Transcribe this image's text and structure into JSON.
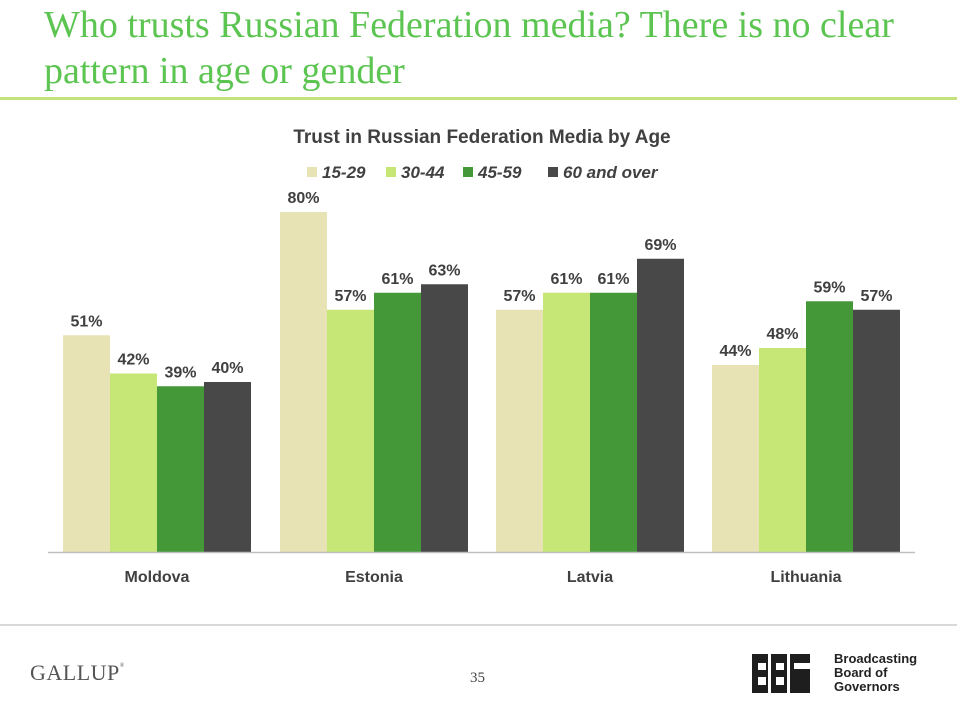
{
  "slide": {
    "title": "Who trusts Russian Federation media? There is no clear pattern in age or gender",
    "page_number": "35"
  },
  "footer": {
    "gallup_logo": "GALLUP",
    "bbg_logo_mark": "BBG",
    "bbg_lines": [
      "Broadcasting",
      "Board of",
      "Governors"
    ]
  },
  "chart_data": {
    "type": "bar",
    "title": "Trust in Russian Federation Media by Age",
    "xlabel": "",
    "ylabel": "",
    "ylim": [
      0,
      100
    ],
    "grid": false,
    "legend_position": "top",
    "categories": [
      "Moldova",
      "Estonia",
      "Latvia",
      "Lithuania"
    ],
    "series": [
      {
        "name": "15-29",
        "color": "#e8e3b4",
        "values": [
          51,
          80,
          57,
          44
        ],
        "labels": [
          "51%",
          "80%",
          "57%",
          "44%"
        ]
      },
      {
        "name": "30-44",
        "color": "#c6e675",
        "values": [
          42,
          57,
          61,
          48
        ],
        "labels": [
          "42%",
          "57%",
          "61%",
          "48%"
        ]
      },
      {
        "name": "45-59",
        "color": "#449838",
        "values": [
          39,
          61,
          61,
          59
        ],
        "labels": [
          "39%",
          "61%",
          "61%",
          "59%"
        ]
      },
      {
        "name": "60 and over",
        "color": "#484848",
        "values": [
          40,
          63,
          69,
          57
        ],
        "labels": [
          "40%",
          "63%",
          "69%",
          "57%"
        ]
      }
    ]
  }
}
